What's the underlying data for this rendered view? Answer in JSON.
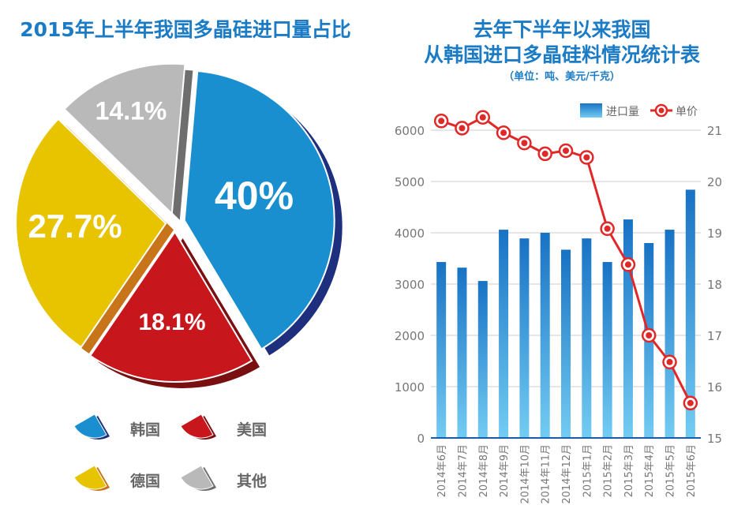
{
  "chart_data": [
    {
      "type": "pie",
      "title": "2015年上半年我国多晶硅进口量占比",
      "slices": [
        {
          "label": "韩国",
          "value": 40,
          "display": "40%",
          "color": "#1a8fd0",
          "side": "#1d2f7d"
        },
        {
          "label": "美国",
          "value": 18.1,
          "display": "18.1%",
          "color": "#c8161d",
          "side": "#7a0f12"
        },
        {
          "label": "德国",
          "value": 27.7,
          "display": "27.7%",
          "color": "#e7c300",
          "side": "#c8741a"
        },
        {
          "label": "其他",
          "value": 14.1,
          "display": "14.1%",
          "color": "#b9b9b9",
          "side": "#6e6e6e"
        }
      ]
    },
    {
      "type": "bar+line",
      "title_line1": "去年下半年以来我国",
      "title_line2": "从韩国进口多晶硅料情况统计表",
      "subtitle": "（单位：吨、美元/千克）",
      "categories": [
        "2014年6月",
        "2014年7月",
        "2014年8月",
        "2014年9月",
        "2014年10月",
        "2014年11月",
        "2014年12月",
        "2015年1月",
        "2015年2月",
        "2015年3月",
        "2015年4月",
        "2015年5月",
        "2015年6月"
      ],
      "series": [
        {
          "name": "进口量",
          "type": "bar",
          "axis": "left",
          "color": "#1a7bc8",
          "values": [
            3430,
            3320,
            3060,
            4060,
            3890,
            4000,
            3670,
            3890,
            3430,
            4260,
            3800,
            4060,
            4840
          ]
        },
        {
          "name": "单价",
          "type": "line",
          "axis": "right",
          "color": "#e02828",
          "values": [
            21.18,
            21.04,
            21.25,
            20.95,
            20.75,
            20.54,
            20.6,
            20.47,
            19.08,
            18.38,
            17.0,
            16.48,
            15.68
          ]
        }
      ],
      "yleft": {
        "range": [
          0,
          6000
        ],
        "ticks": [
          "0",
          "1000",
          "2000",
          "3000",
          "4000",
          "5000",
          "6000"
        ]
      },
      "yright": {
        "range": [
          15,
          21
        ],
        "ticks": [
          "15",
          "16",
          "17",
          "18",
          "19",
          "20",
          "21"
        ]
      },
      "grid": true,
      "legend": "top-right"
    }
  ]
}
